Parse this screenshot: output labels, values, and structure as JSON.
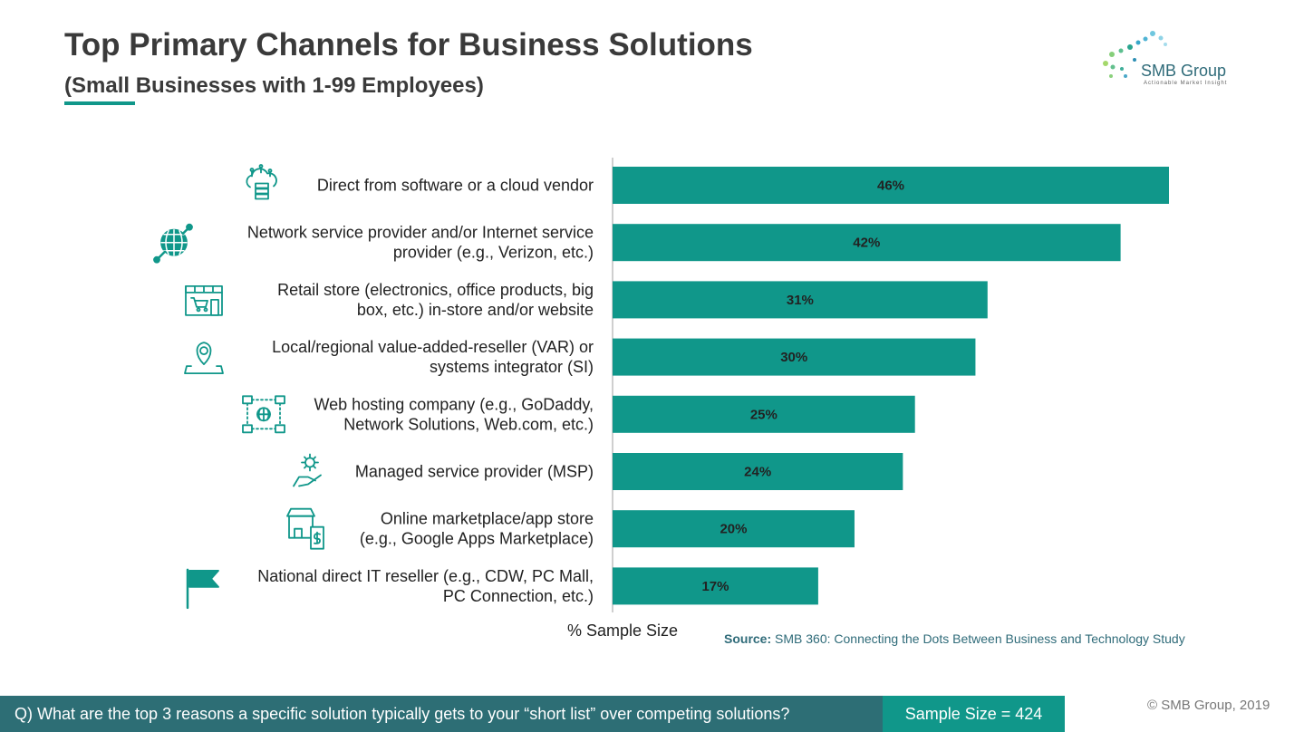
{
  "header": {
    "title": "Top Primary Channels for Business Solutions",
    "subtitle": "(Small Businesses with 1-99 Employees)"
  },
  "logo": {
    "name": "SMB Group",
    "tagline": "Actionable Market Insight"
  },
  "chart_data": {
    "type": "bar",
    "orientation": "horizontal",
    "xlabel": "% Sample Size",
    "xlim": [
      0,
      46
    ],
    "categories": [
      [
        "Direct from software or a cloud vendor"
      ],
      [
        "Network service provider and/or Internet service",
        "provider (e.g., Verizon, etc.)"
      ],
      [
        "Retail store (electronics, office products, big",
        "box, etc.) in-store and/or website"
      ],
      [
        "Local/regional value-added-reseller (VAR) or",
        "systems integrator (SI)"
      ],
      [
        "Web hosting company (e.g., GoDaddy,",
        "Network Solutions, Web.com, etc.)"
      ],
      [
        "Managed service provider (MSP)"
      ],
      [
        "Online marketplace/app store",
        "(e.g., Google Apps Marketplace)"
      ],
      [
        "National direct IT reseller (e.g., CDW, PC Mall,",
        "PC Connection, etc.)"
      ]
    ],
    "values": [
      46,
      42,
      31,
      30,
      25,
      24,
      20,
      17
    ],
    "value_labels": [
      "46%",
      "42%",
      "31%",
      "30%",
      "25%",
      "24%",
      "20%",
      "17%"
    ],
    "icons": [
      "cloud-server-icon",
      "globe-network-icon",
      "storefront-cart-icon",
      "map-pin-icon",
      "web-hosting-network-icon",
      "hand-gear-icon",
      "shop-mobile-payment-icon",
      "flag-icon"
    ],
    "bar_color": "#10978a",
    "grid": false,
    "legend": "none"
  },
  "footer": {
    "source_prefix": "Source:",
    "source_text": "SMB 360: Connecting the Dots Between Business and Technology Study",
    "question": "Q) What are the top 3 reasons a specific solution typically gets to your “short list” over competing solutions?",
    "sample_size": "Sample Size = 424",
    "copyright": "© SMB Group, 2019"
  },
  "colors": {
    "accent": "#10978a",
    "question_bar": "#2d6e75",
    "title": "#3a3a3a",
    "source": "#2f6b79"
  }
}
